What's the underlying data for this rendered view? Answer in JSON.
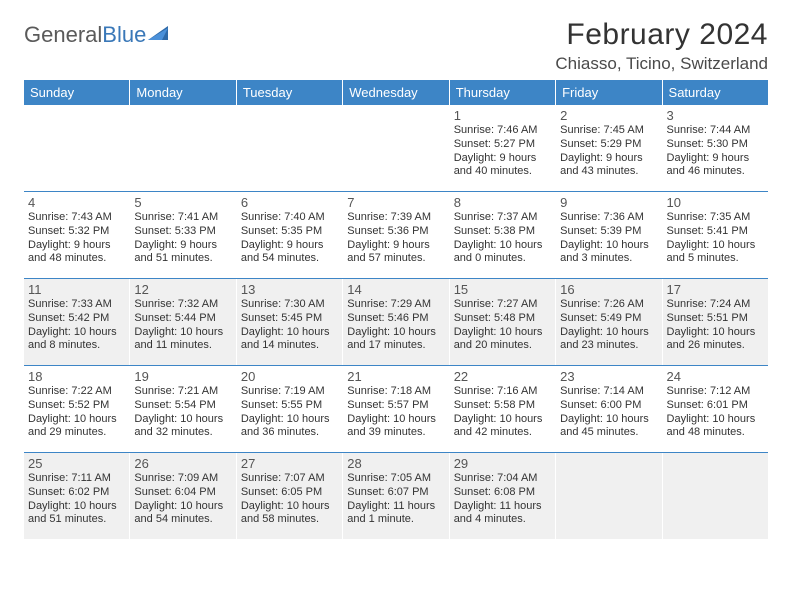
{
  "logo": {
    "text1": "General",
    "text2": "Blue"
  },
  "title": "February 2024",
  "location": "Chiasso, Ticino, Switzerland",
  "colors": {
    "header_bg": "#3d85c6",
    "header_text": "#ffffff",
    "row_border": "#3d85c6",
    "shaded_bg": "#f0f0f0",
    "text": "#333333",
    "daynum": "#555555",
    "logo_gray": "#5a5a5a",
    "logo_blue": "#3a78b8"
  },
  "dayNames": [
    "Sunday",
    "Monday",
    "Tuesday",
    "Wednesday",
    "Thursday",
    "Friday",
    "Saturday"
  ],
  "shadedRows": [
    2,
    4
  ],
  "weeks": [
    [
      null,
      null,
      null,
      null,
      {
        "n": "1",
        "sunrise": "7:46 AM",
        "sunset": "5:27 PM",
        "dl1": "Daylight: 9 hours",
        "dl2": "and 40 minutes."
      },
      {
        "n": "2",
        "sunrise": "7:45 AM",
        "sunset": "5:29 PM",
        "dl1": "Daylight: 9 hours",
        "dl2": "and 43 minutes."
      },
      {
        "n": "3",
        "sunrise": "7:44 AM",
        "sunset": "5:30 PM",
        "dl1": "Daylight: 9 hours",
        "dl2": "and 46 minutes."
      }
    ],
    [
      {
        "n": "4",
        "sunrise": "7:43 AM",
        "sunset": "5:32 PM",
        "dl1": "Daylight: 9 hours",
        "dl2": "and 48 minutes."
      },
      {
        "n": "5",
        "sunrise": "7:41 AM",
        "sunset": "5:33 PM",
        "dl1": "Daylight: 9 hours",
        "dl2": "and 51 minutes."
      },
      {
        "n": "6",
        "sunrise": "7:40 AM",
        "sunset": "5:35 PM",
        "dl1": "Daylight: 9 hours",
        "dl2": "and 54 minutes."
      },
      {
        "n": "7",
        "sunrise": "7:39 AM",
        "sunset": "5:36 PM",
        "dl1": "Daylight: 9 hours",
        "dl2": "and 57 minutes."
      },
      {
        "n": "8",
        "sunrise": "7:37 AM",
        "sunset": "5:38 PM",
        "dl1": "Daylight: 10 hours",
        "dl2": "and 0 minutes."
      },
      {
        "n": "9",
        "sunrise": "7:36 AM",
        "sunset": "5:39 PM",
        "dl1": "Daylight: 10 hours",
        "dl2": "and 3 minutes."
      },
      {
        "n": "10",
        "sunrise": "7:35 AM",
        "sunset": "5:41 PM",
        "dl1": "Daylight: 10 hours",
        "dl2": "and 5 minutes."
      }
    ],
    [
      {
        "n": "11",
        "sunrise": "7:33 AM",
        "sunset": "5:42 PM",
        "dl1": "Daylight: 10 hours",
        "dl2": "and 8 minutes."
      },
      {
        "n": "12",
        "sunrise": "7:32 AM",
        "sunset": "5:44 PM",
        "dl1": "Daylight: 10 hours",
        "dl2": "and 11 minutes."
      },
      {
        "n": "13",
        "sunrise": "7:30 AM",
        "sunset": "5:45 PM",
        "dl1": "Daylight: 10 hours",
        "dl2": "and 14 minutes."
      },
      {
        "n": "14",
        "sunrise": "7:29 AM",
        "sunset": "5:46 PM",
        "dl1": "Daylight: 10 hours",
        "dl2": "and 17 minutes."
      },
      {
        "n": "15",
        "sunrise": "7:27 AM",
        "sunset": "5:48 PM",
        "dl1": "Daylight: 10 hours",
        "dl2": "and 20 minutes."
      },
      {
        "n": "16",
        "sunrise": "7:26 AM",
        "sunset": "5:49 PM",
        "dl1": "Daylight: 10 hours",
        "dl2": "and 23 minutes."
      },
      {
        "n": "17",
        "sunrise": "7:24 AM",
        "sunset": "5:51 PM",
        "dl1": "Daylight: 10 hours",
        "dl2": "and 26 minutes."
      }
    ],
    [
      {
        "n": "18",
        "sunrise": "7:22 AM",
        "sunset": "5:52 PM",
        "dl1": "Daylight: 10 hours",
        "dl2": "and 29 minutes."
      },
      {
        "n": "19",
        "sunrise": "7:21 AM",
        "sunset": "5:54 PM",
        "dl1": "Daylight: 10 hours",
        "dl2": "and 32 minutes."
      },
      {
        "n": "20",
        "sunrise": "7:19 AM",
        "sunset": "5:55 PM",
        "dl1": "Daylight: 10 hours",
        "dl2": "and 36 minutes."
      },
      {
        "n": "21",
        "sunrise": "7:18 AM",
        "sunset": "5:57 PM",
        "dl1": "Daylight: 10 hours",
        "dl2": "and 39 minutes."
      },
      {
        "n": "22",
        "sunrise": "7:16 AM",
        "sunset": "5:58 PM",
        "dl1": "Daylight: 10 hours",
        "dl2": "and 42 minutes."
      },
      {
        "n": "23",
        "sunrise": "7:14 AM",
        "sunset": "6:00 PM",
        "dl1": "Daylight: 10 hours",
        "dl2": "and 45 minutes."
      },
      {
        "n": "24",
        "sunrise": "7:12 AM",
        "sunset": "6:01 PM",
        "dl1": "Daylight: 10 hours",
        "dl2": "and 48 minutes."
      }
    ],
    [
      {
        "n": "25",
        "sunrise": "7:11 AM",
        "sunset": "6:02 PM",
        "dl1": "Daylight: 10 hours",
        "dl2": "and 51 minutes."
      },
      {
        "n": "26",
        "sunrise": "7:09 AM",
        "sunset": "6:04 PM",
        "dl1": "Daylight: 10 hours",
        "dl2": "and 54 minutes."
      },
      {
        "n": "27",
        "sunrise": "7:07 AM",
        "sunset": "6:05 PM",
        "dl1": "Daylight: 10 hours",
        "dl2": "and 58 minutes."
      },
      {
        "n": "28",
        "sunrise": "7:05 AM",
        "sunset": "6:07 PM",
        "dl1": "Daylight: 11 hours",
        "dl2": "and 1 minute."
      },
      {
        "n": "29",
        "sunrise": "7:04 AM",
        "sunset": "6:08 PM",
        "dl1": "Daylight: 11 hours",
        "dl2": "and 4 minutes."
      },
      null,
      null
    ]
  ],
  "labels": {
    "sunrise": "Sunrise: ",
    "sunset": "Sunset: "
  }
}
